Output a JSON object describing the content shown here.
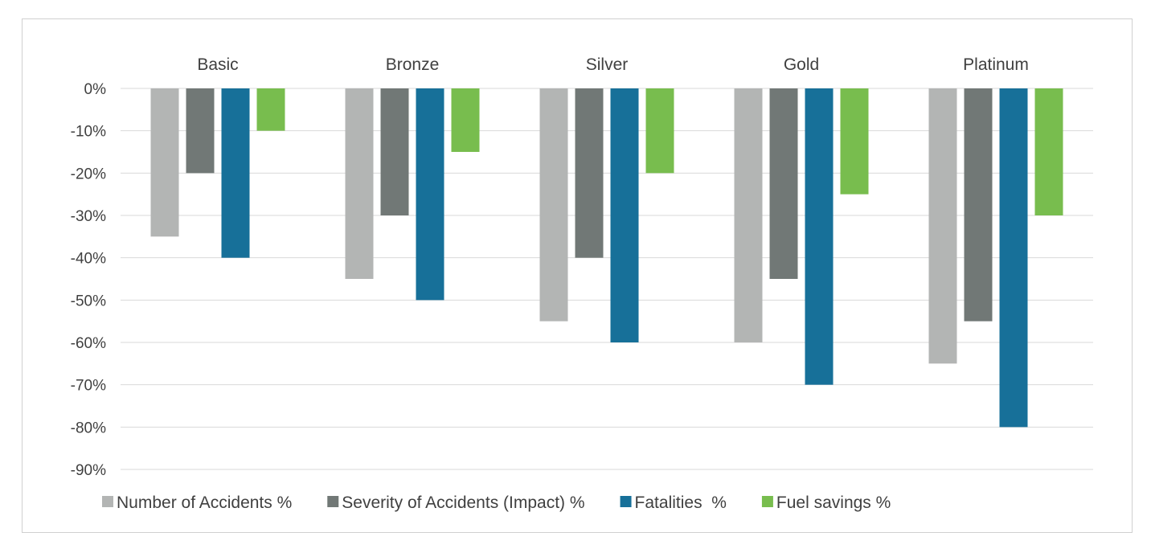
{
  "chart_data": {
    "type": "bar",
    "title": "",
    "xlabel": "",
    "ylabel": "",
    "categories": [
      "Basic",
      "Bronze",
      "Silver",
      "Gold",
      "Platinum"
    ],
    "series": [
      {
        "name": "Number of Accidents %",
        "color": "#b3b5b4",
        "values": [
          -35,
          -45,
          -55,
          -60,
          -65
        ]
      },
      {
        "name": "Severity of Accidents (Impact) %",
        "color": "#717876",
        "values": [
          -20,
          -30,
          -40,
          -45,
          -55
        ]
      },
      {
        "name": "Fatalities  %",
        "color": "#177099",
        "values": [
          -40,
          -50,
          -60,
          -70,
          -80
        ]
      },
      {
        "name": "Fuel savings %",
        "color": "#78bd4e",
        "values": [
          -10,
          -15,
          -20,
          -25,
          -30
        ]
      }
    ],
    "ylim": [
      -90,
      0
    ],
    "yticks": [
      0,
      -10,
      -20,
      -30,
      -40,
      -50,
      -60,
      -70,
      -80,
      -90
    ],
    "ytick_labels": [
      "0%",
      "-10%",
      "-20%",
      "-30%",
      "-40%",
      "-50%",
      "-60%",
      "-70%",
      "-80%",
      "-90%"
    ],
    "grid": true,
    "legend_position": "bottom",
    "category_label_position": "top"
  }
}
